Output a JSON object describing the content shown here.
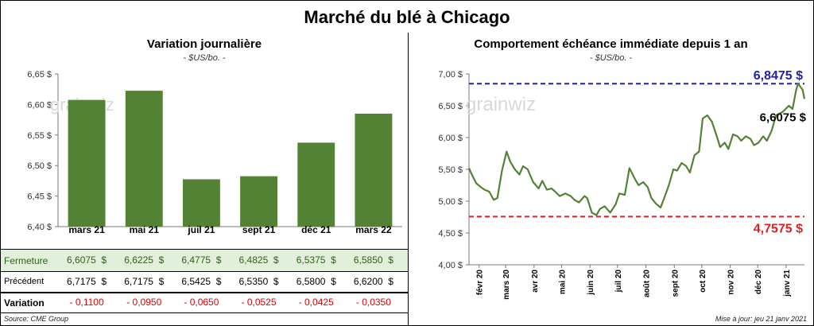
{
  "title": "Marché du blé à Chicago",
  "left_panel": {
    "title": "Variation  journalière",
    "unit": "- $US/bo. -",
    "table": {
      "rows": [
        {
          "label": "Fermeture",
          "values": [
            "6,6075  $",
            "6,6225  $",
            "6,4775  $",
            "6,4825  $",
            "6,5375  $",
            "6,5850  $"
          ]
        },
        {
          "label": "Précédent",
          "values": [
            "6,7175  $",
            "6,7175  $",
            "6,5425  $",
            "6,5350  $",
            "6,5800  $",
            "6,6200  $"
          ]
        },
        {
          "label": "Variation",
          "values": [
            "- 0,1100",
            "- 0,0950",
            "- 0,0650",
            "- 0,0525",
            "- 0,0425",
            "- 0,0350"
          ]
        }
      ]
    },
    "source": "Source: CME Group"
  },
  "right_panel": {
    "title": "Comportement  échéance immédiate depuis 1 an",
    "unit": "- $US/bo. -",
    "high_label": "6,8475 $",
    "low_label": "4,7575 $",
    "last_label": "6,6075 $",
    "updated": "Mise à jour: jeu 21 janv 2021"
  },
  "watermark": "grainwiz",
  "colors": {
    "bar": "#548235",
    "line": "#548235",
    "high": "#1f1fb4",
    "low": "#e02020",
    "table_highlight": "#e2efda",
    "neg": "#e00000"
  },
  "chart_data": [
    {
      "type": "bar",
      "categories": [
        "mars 21",
        "mai 21",
        "juil 21",
        "sept 21",
        "déc 21",
        "mars 22"
      ],
      "values": [
        6.6075,
        6.6225,
        6.4775,
        6.4825,
        6.5375,
        6.585
      ],
      "ylim": [
        6.4,
        6.65
      ],
      "yticks": [
        "6,40 $",
        "6,45 $",
        "6,50 $",
        "6,55 $",
        "6,60 $",
        "6,65 $"
      ],
      "grid": false
    },
    {
      "type": "line",
      "xticks": [
        "févr 20",
        "mars 20",
        "avr 20",
        "mai 20",
        "juin 20",
        "juil 20",
        "août 20",
        "sept 20",
        "oct 20",
        "nov 20",
        "déc 20",
        "janv 21"
      ],
      "yticks": [
        "4,00 $",
        "4,50 $",
        "5,00 $",
        "5,50 $",
        "6,00 $",
        "6,50 $",
        "7,00 $"
      ],
      "ylim": [
        4.0,
        7.0
      ],
      "reference_lines": [
        6.8475,
        4.7575
      ],
      "series": [
        {
          "x": [
            "2020-01-21",
            "2020-01-24",
            "2020-01-29",
            "2020-02-03",
            "2020-02-07",
            "2020-02-12",
            "2020-02-17",
            "2020-02-21",
            "2020-02-26",
            "2020-03-02",
            "2020-03-06",
            "2020-03-11",
            "2020-03-16",
            "2020-03-20",
            "2020-03-25",
            "2020-03-31",
            "2020-04-06",
            "2020-04-10",
            "2020-04-15",
            "2020-04-20",
            "2020-04-24",
            "2020-04-29",
            "2020-05-05",
            "2020-05-11",
            "2020-05-15",
            "2020-05-20",
            "2020-05-26",
            "2020-05-29",
            "2020-06-03",
            "2020-06-08",
            "2020-06-12",
            "2020-06-17",
            "2020-06-23",
            "2020-06-29",
            "2020-07-03",
            "2020-07-09",
            "2020-07-14",
            "2020-07-20",
            "2020-07-24",
            "2020-07-29",
            "2020-08-03",
            "2020-08-07",
            "2020-08-12",
            "2020-08-17",
            "2020-08-21",
            "2020-08-26",
            "2020-08-31",
            "2020-09-04",
            "2020-09-09",
            "2020-09-14",
            "2020-09-18",
            "2020-09-23",
            "2020-09-28",
            "2020-10-02",
            "2020-10-07",
            "2020-10-12",
            "2020-10-16",
            "2020-10-21",
            "2020-10-26",
            "2020-10-30",
            "2020-11-04",
            "2020-11-09",
            "2020-11-13",
            "2020-11-18",
            "2020-11-23",
            "2020-11-27",
            "2020-12-02",
            "2020-12-07",
            "2020-12-11",
            "2020-12-16",
            "2020-12-21",
            "2020-12-28",
            "2021-01-04",
            "2021-01-08",
            "2021-01-12",
            "2021-01-14",
            "2021-01-19",
            "2021-01-21"
          ],
          "y": [
            5.52,
            5.42,
            5.28,
            5.22,
            5.18,
            5.15,
            5.02,
            5.05,
            5.48,
            5.78,
            5.62,
            5.5,
            5.42,
            5.55,
            5.5,
            5.3,
            5.2,
            5.32,
            5.18,
            5.2,
            5.15,
            5.08,
            5.12,
            5.08,
            5.02,
            4.98,
            5.08,
            5.05,
            4.82,
            4.78,
            4.88,
            4.92,
            4.82,
            4.95,
            5.12,
            5.1,
            5.52,
            5.35,
            5.25,
            5.3,
            5.22,
            5.05,
            4.96,
            4.9,
            5.05,
            5.25,
            5.5,
            5.48,
            5.6,
            5.55,
            5.45,
            5.72,
            5.78,
            6.3,
            6.35,
            6.25,
            6.08,
            5.85,
            5.92,
            5.82,
            6.05,
            6.02,
            5.95,
            6.02,
            5.98,
            5.88,
            5.92,
            6.02,
            5.95,
            6.1,
            6.35,
            6.4,
            6.5,
            6.45,
            6.75,
            6.85,
            6.75,
            6.6075
          ]
        }
      ]
    }
  ]
}
